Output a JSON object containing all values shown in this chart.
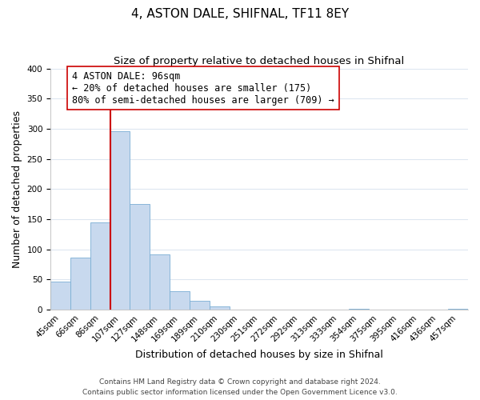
{
  "title": "4, ASTON DALE, SHIFNAL, TF11 8EY",
  "subtitle": "Size of property relative to detached houses in Shifnal",
  "xlabel": "Distribution of detached houses by size in Shifnal",
  "ylabel": "Number of detached properties",
  "bar_labels": [
    "45sqm",
    "66sqm",
    "86sqm",
    "107sqm",
    "127sqm",
    "148sqm",
    "169sqm",
    "189sqm",
    "210sqm",
    "230sqm",
    "251sqm",
    "272sqm",
    "292sqm",
    "313sqm",
    "333sqm",
    "354sqm",
    "375sqm",
    "395sqm",
    "416sqm",
    "436sqm",
    "457sqm"
  ],
  "bar_values": [
    47,
    86,
    145,
    296,
    175,
    91,
    30,
    14,
    5,
    0,
    0,
    0,
    0,
    0,
    0,
    1,
    0,
    0,
    0,
    0,
    1
  ],
  "bar_color": "#c8d9ee",
  "bar_edge_color": "#7aaed4",
  "vline_color": "#cc0000",
  "annotation_text": "4 ASTON DALE: 96sqm\n← 20% of detached houses are smaller (175)\n80% of semi-detached houses are larger (709) →",
  "annotation_box_color": "#ffffff",
  "annotation_box_edge_color": "#cc0000",
  "ylim": [
    0,
    400
  ],
  "yticks": [
    0,
    50,
    100,
    150,
    200,
    250,
    300,
    350,
    400
  ],
  "footer_text": "Contains HM Land Registry data © Crown copyright and database right 2024.\nContains public sector information licensed under the Open Government Licence v3.0.",
  "background_color": "#ffffff",
  "grid_color": "#dde6f0",
  "title_fontsize": 11,
  "subtitle_fontsize": 9.5,
  "axis_label_fontsize": 9,
  "tick_fontsize": 7.5,
  "annotation_fontsize": 8.5,
  "footer_fontsize": 6.5
}
